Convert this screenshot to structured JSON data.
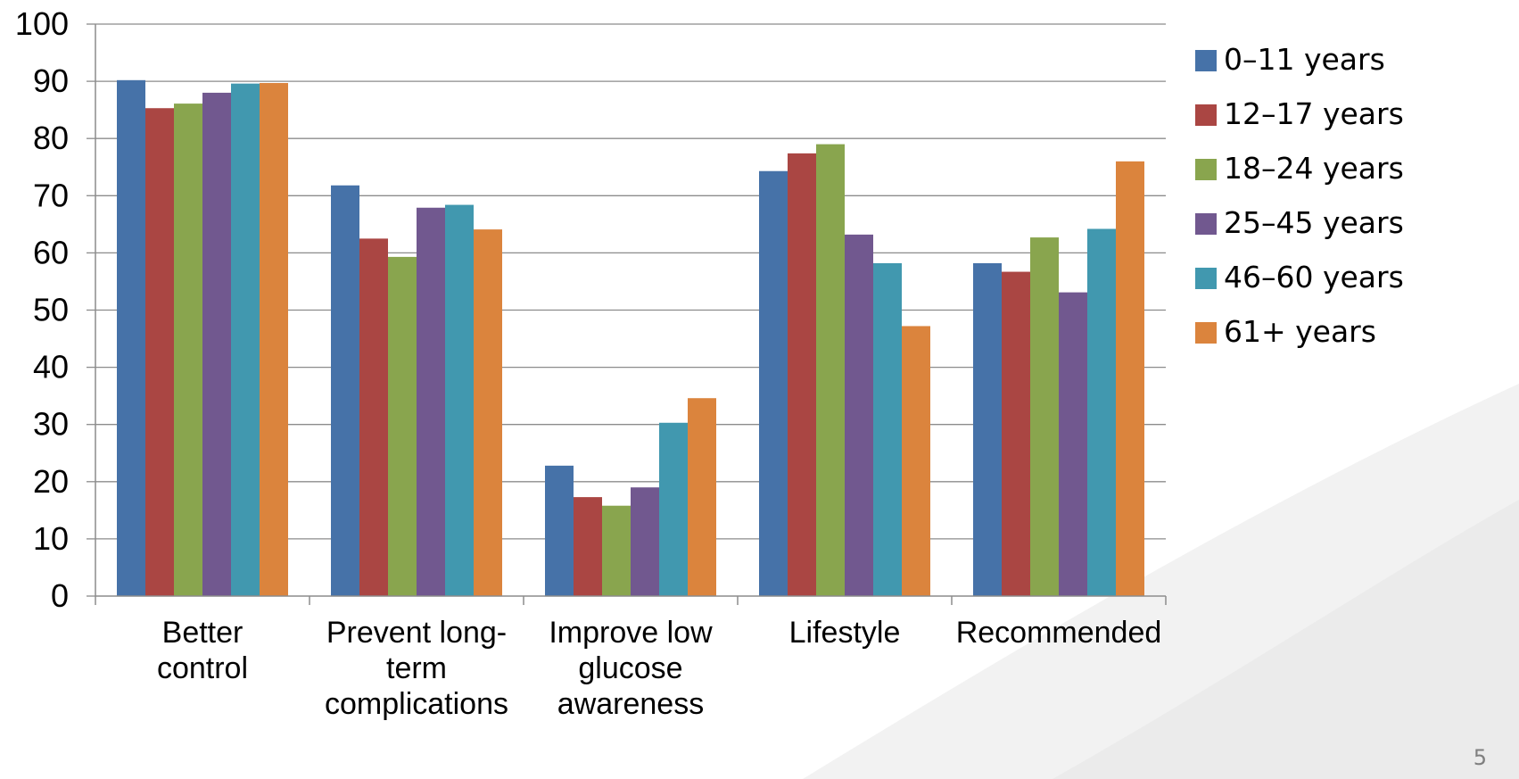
{
  "page_number": "5",
  "chart_data": {
    "type": "bar",
    "title": "",
    "xlabel": "",
    "ylabel": "",
    "ylim": [
      0,
      100
    ],
    "yticks": [
      0,
      10,
      20,
      30,
      40,
      50,
      60,
      70,
      80,
      90,
      100
    ],
    "grid": true,
    "legend_position": "right",
    "categories": [
      [
        "Better",
        "control"
      ],
      [
        "Prevent long-",
        "term",
        "complications"
      ],
      [
        "Improve low",
        "glucose",
        "awareness"
      ],
      [
        "Lifestyle"
      ],
      [
        "Recommended"
      ]
    ],
    "series": [
      {
        "name": "0–11 years",
        "color": "#4672A8",
        "values": [
          90.2,
          71.8,
          22.8,
          74.3,
          58.2
        ]
      },
      {
        "name": "12–17 years",
        "color": "#AA4643",
        "values": [
          85.3,
          62.5,
          17.3,
          77.4,
          56.7
        ]
      },
      {
        "name": "18–24 years",
        "color": "#89A54E",
        "values": [
          86.1,
          59.3,
          15.8,
          79.0,
          62.7
        ]
      },
      {
        "name": "25–45 years",
        "color": "#71588F",
        "values": [
          88.0,
          67.9,
          19.0,
          63.2,
          53.1
        ]
      },
      {
        "name": "46–60 years",
        "color": "#4198AF",
        "values": [
          89.6,
          68.4,
          30.3,
          58.2,
          64.2
        ]
      },
      {
        "name": "61+ years",
        "color": "#DB843D",
        "values": [
          89.7,
          64.1,
          34.6,
          47.2,
          76.0
        ]
      }
    ]
  }
}
